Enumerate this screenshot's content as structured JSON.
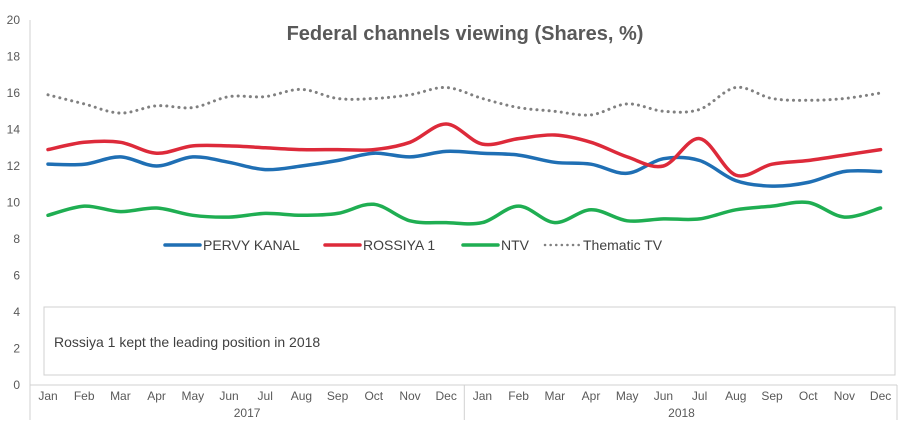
{
  "chart_data": {
    "type": "line",
    "title": "Federal channels viewing (Shares, %)",
    "xlabel": "",
    "ylabel": "",
    "ylim": [
      0,
      20
    ],
    "yticks": [
      0,
      2,
      4,
      6,
      8,
      10,
      12,
      14,
      16,
      18,
      20
    ],
    "grid": false,
    "legend_position": "center",
    "categories": [
      "Jan",
      "Feb",
      "Mar",
      "Apr",
      "May",
      "Jun",
      "Jul",
      "Aug",
      "Sep",
      "Oct",
      "Nov",
      "Dec",
      "Jan",
      "Feb",
      "Mar",
      "Apr",
      "May",
      "Jun",
      "Jul",
      "Aug",
      "Sep",
      "Oct",
      "Nov",
      "Dec"
    ],
    "groups": [
      {
        "label": "2017",
        "count": 12
      },
      {
        "label": "2018",
        "count": 12
      }
    ],
    "series": [
      {
        "name": "PERVY KANAL",
        "color": "#1f6fb4",
        "style": "solid",
        "values": [
          12.1,
          12.1,
          12.5,
          12.0,
          12.5,
          12.2,
          11.8,
          12.0,
          12.3,
          12.7,
          12.5,
          12.8,
          12.7,
          12.6,
          12.2,
          12.1,
          11.6,
          12.4,
          12.3,
          11.2,
          10.9,
          11.1,
          11.7,
          11.7
        ]
      },
      {
        "name": "ROSSIYA 1",
        "color": "#dd2a3a",
        "style": "solid",
        "values": [
          12.9,
          13.3,
          13.3,
          12.7,
          13.1,
          13.1,
          13.0,
          12.9,
          12.9,
          12.9,
          13.3,
          14.3,
          13.2,
          13.5,
          13.7,
          13.3,
          12.5,
          12.0,
          13.5,
          11.5,
          12.1,
          12.3,
          12.6,
          12.9
        ]
      },
      {
        "name": "NTV",
        "color": "#1fae52",
        "style": "solid",
        "values": [
          9.3,
          9.8,
          9.5,
          9.7,
          9.3,
          9.2,
          9.4,
          9.3,
          9.4,
          9.9,
          9.0,
          8.9,
          8.9,
          9.8,
          8.9,
          9.6,
          9.0,
          9.1,
          9.1,
          9.6,
          9.8,
          10.0,
          9.2,
          9.7
        ]
      },
      {
        "name": "Thematic TV",
        "color": "#808080",
        "style": "dotted",
        "values": [
          15.9,
          15.4,
          14.9,
          15.3,
          15.2,
          15.8,
          15.8,
          16.2,
          15.7,
          15.7,
          15.9,
          16.3,
          15.7,
          15.2,
          15.0,
          14.8,
          15.4,
          15.0,
          15.1,
          16.3,
          15.7,
          15.6,
          15.7,
          16.0
        ]
      }
    ],
    "annotation": "Rossiya 1 kept the leading position in 2018"
  }
}
